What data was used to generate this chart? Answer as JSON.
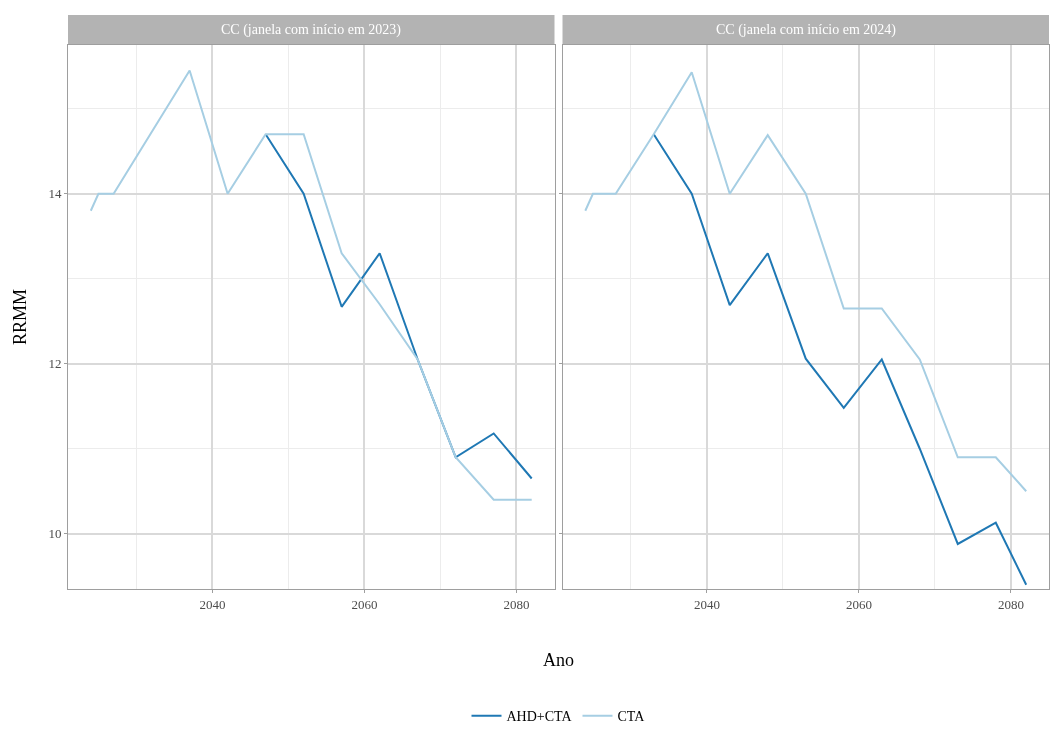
{
  "chart_data": [
    {
      "type": "line",
      "title": "CC (janela com início em 2023)",
      "xlabel": "Ano",
      "ylabel": "RRMM",
      "legend": "bottom",
      "grid": true,
      "xlim": [
        2021,
        2085
      ],
      "xticks": [
        {
          "value": 2030,
          "label": null
        },
        2040,
        {
          "value": 2050,
          "label": null
        },
        2060,
        {
          "value": 2070,
          "label": null
        },
        2080
      ],
      "ylim": [
        9.35,
        15.75
      ],
      "yticks": [
        10,
        {
          "value": 11,
          "label": null
        },
        12,
        {
          "value": 13,
          "label": null
        },
        14,
        {
          "value": 15,
          "label": null
        }
      ],
      "series": [
        {
          "name": "AHD+CTA",
          "color": "#1f78b4",
          "x": [
            2047,
            2052,
            2057,
            2062,
            2067,
            2072,
            2077,
            2082
          ],
          "values": [
            14.7,
            14.0,
            12.67,
            13.3,
            12.05,
            10.9,
            11.18,
            10.65
          ]
        },
        {
          "name": "CTA",
          "color": "#a6cee3",
          "x": [
            2024,
            2025,
            2027,
            2037,
            2042,
            2047,
            2052,
            2057,
            2062,
            2067,
            2072,
            2077,
            2082
          ],
          "values": [
            13.8,
            14.0,
            14.0,
            15.45,
            14.0,
            14.7,
            14.7,
            13.3,
            12.7,
            12.05,
            10.9,
            10.4,
            10.4
          ]
        }
      ]
    },
    {
      "type": "line",
      "title": "CC (janela com início em 2024)",
      "legend": "bottom",
      "grid": true,
      "tick_labels": "x",
      "xlim": [
        2021,
        2085
      ],
      "xticks": [
        {
          "value": 2030,
          "label": null
        },
        2040,
        {
          "value": 2050,
          "label": null
        },
        2060,
        {
          "value": 2070,
          "label": null
        },
        2080
      ],
      "ylim": [
        9.35,
        15.75
      ],
      "yticks": [
        10,
        {
          "value": 11,
          "label": null
        },
        12,
        {
          "value": 13,
          "label": null
        },
        14,
        {
          "value": 15,
          "label": null
        }
      ],
      "series": [
        {
          "name": "AHD+CTA",
          "color": "#1f78b4",
          "x": [
            2033,
            2038,
            2043,
            2048,
            2053,
            2058,
            2063,
            2068,
            2073,
            2078,
            2082
          ],
          "values": [
            14.7,
            14.0,
            12.69,
            13.3,
            12.06,
            11.48,
            12.05,
            11.0,
            9.88,
            10.13,
            9.4
          ]
        },
        {
          "name": "CTA",
          "color": "#a6cee3",
          "x": [
            2024,
            2025,
            2028,
            2033,
            2038,
            2043,
            2048,
            2053,
            2058,
            2063,
            2068,
            2073,
            2078,
            2082
          ],
          "values": [
            13.8,
            14.0,
            14.0,
            14.7,
            15.43,
            14.0,
            14.69,
            14.0,
            12.65,
            12.65,
            12.05,
            10.9,
            10.9,
            10.5
          ]
        }
      ]
    }
  ]
}
